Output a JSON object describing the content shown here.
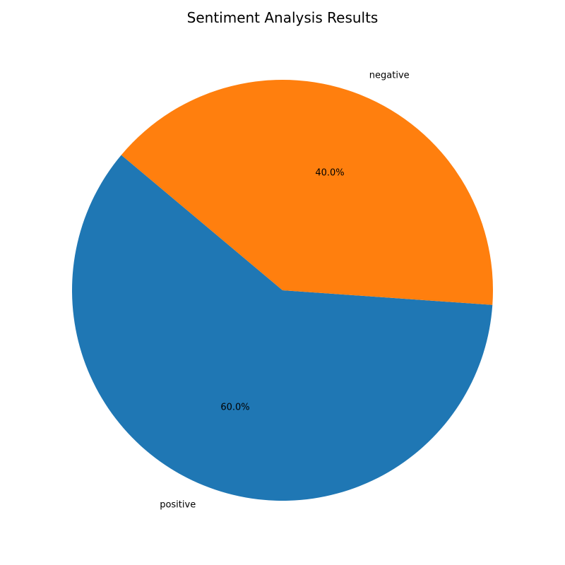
{
  "chart_data": {
    "type": "pie",
    "title": "Sentiment Analysis Results",
    "categories": [
      "positive",
      "negative"
    ],
    "values": [
      60.0,
      40.0
    ],
    "value_labels": [
      "60.0%",
      "40.0%"
    ],
    "colors": [
      "#1f77b4",
      "#ff7f0e"
    ],
    "start_angle_deg": 140,
    "direction": "counterclockwise"
  }
}
